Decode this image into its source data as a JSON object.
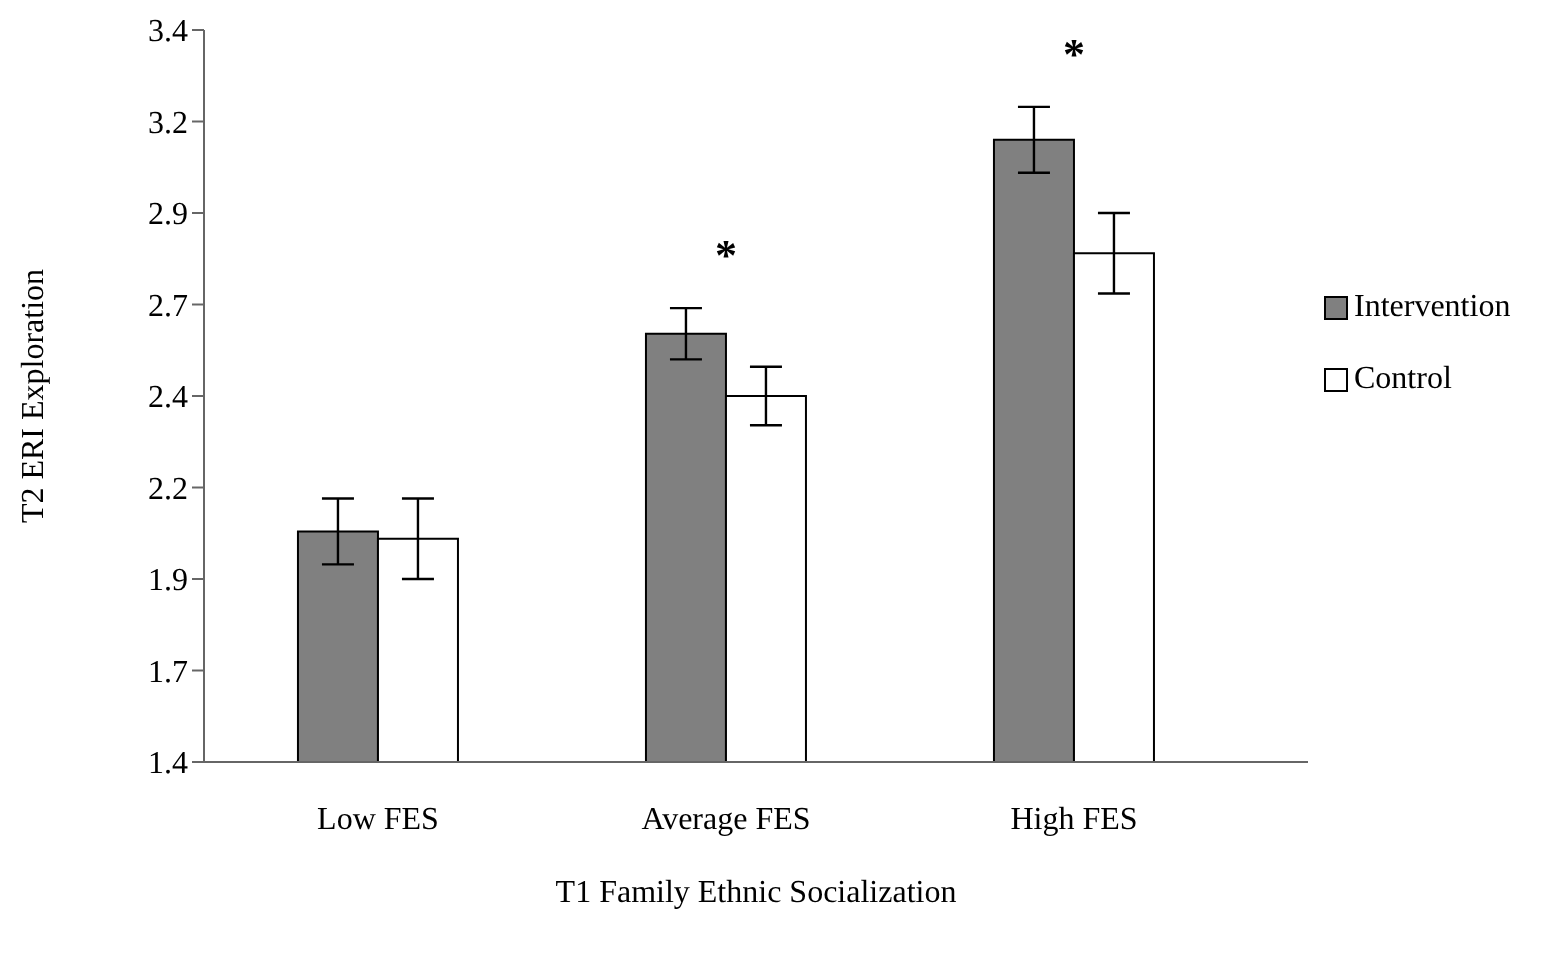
{
  "chart_data": {
    "type": "bar",
    "xlabel": "T1 Family Ethnic Socialization",
    "ylabel": "T2 ERI Exploration",
    "categories": [
      "Low FES",
      "Average FES",
      "High FES"
    ],
    "series": [
      {
        "name": "Intervention",
        "color": "#808080",
        "values": [
          2.03,
          2.57,
          3.1
        ],
        "errors": [
          0.09,
          0.07,
          0.09
        ]
      },
      {
        "name": "Control",
        "color": "#ffffff",
        "values": [
          2.01,
          2.4,
          2.79
        ],
        "errors": [
          0.11,
          0.08,
          0.11
        ]
      }
    ],
    "ylim": [
      1.4,
      3.4
    ],
    "yticks": [
      1.4,
      {
        "value": 1.65,
        "label": "1.7"
      },
      1.9,
      {
        "value": 2.15,
        "label": "2.2"
      },
      2.4,
      {
        "value": 2.65,
        "label": "2.7"
      },
      2.9,
      {
        "value": 3.15,
        "label": "3.2"
      },
      3.4
    ],
    "annotations": [
      "*",
      "*"
    ],
    "legend": "right",
    "grid": false
  }
}
